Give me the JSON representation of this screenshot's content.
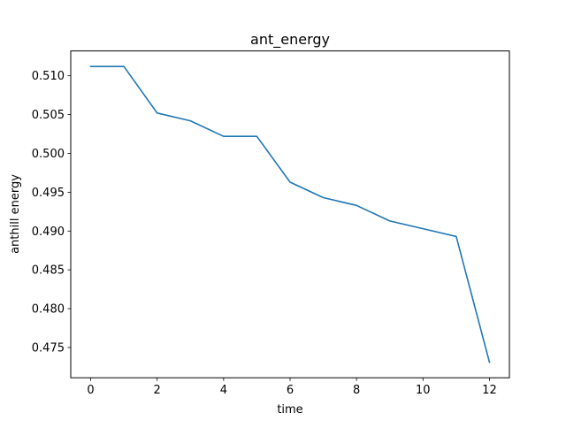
{
  "chart_data": {
    "type": "line",
    "title": "ant_energy",
    "xlabel": "time",
    "ylabel": "anthill energy",
    "xlim": [
      -0.6,
      12.6
    ],
    "ylim": [
      0.4711,
      0.5132
    ],
    "xticks": [
      0,
      2,
      4,
      6,
      8,
      10,
      12
    ],
    "xtick_labels": [
      "0",
      "2",
      "4",
      "6",
      "8",
      "10",
      "12"
    ],
    "yticks": [
      0.475,
      0.48,
      0.485,
      0.49,
      0.495,
      0.5,
      0.505,
      0.51
    ],
    "ytick_labels": [
      "0.475",
      "0.480",
      "0.485",
      "0.490",
      "0.495",
      "0.500",
      "0.505",
      "0.510"
    ],
    "grid": false,
    "series": [
      {
        "color": "#1f77b4",
        "x": [
          0,
          1,
          2,
          3,
          4,
          5,
          6,
          7,
          8,
          9,
          10,
          11,
          12
        ],
        "y": [
          0.5112,
          0.5112,
          0.5052,
          0.5042,
          0.5022,
          0.5022,
          0.4963,
          0.4943,
          0.4933,
          0.4913,
          0.4903,
          0.4893,
          0.4731
        ]
      }
    ]
  }
}
